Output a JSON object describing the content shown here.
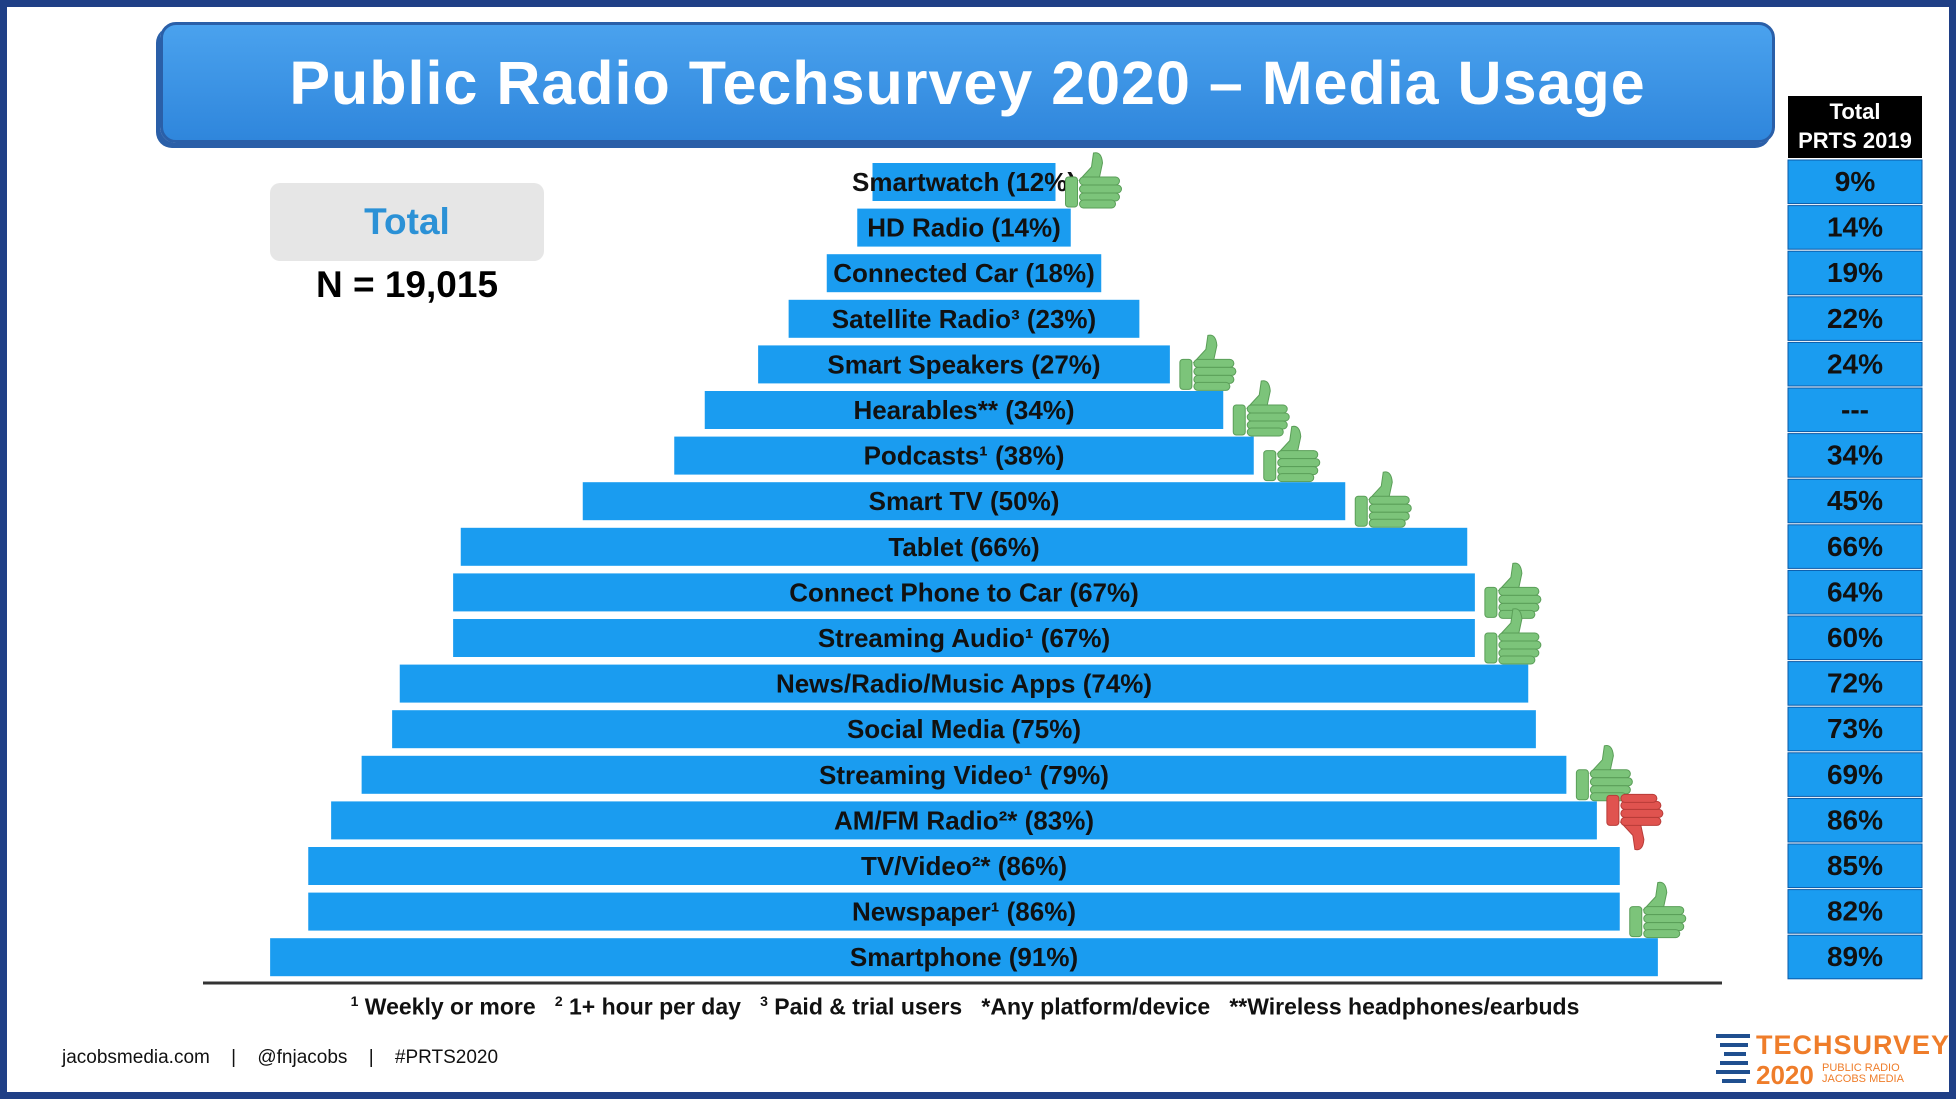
{
  "title": "Public Radio Techsurvey 2020 – Media Usage",
  "total_label": "Total",
  "sample_size": "N = 19,015",
  "prior_column": {
    "header_line1": "Total",
    "header_line2": "PRTS 2019"
  },
  "colors": {
    "bar": "#1a9cf0",
    "prior_cell": "#1a9cf0",
    "header_cell": "#000000",
    "thumbs_up": "#7cc47a",
    "thumbs_down": "#e0534f"
  },
  "chart_data": {
    "type": "bar",
    "orientation": "horizontal-centered",
    "series": [
      {
        "name": "Total",
        "values": [
          12,
          14,
          18,
          23,
          27,
          34,
          38,
          50,
          66,
          67,
          67,
          74,
          75,
          79,
          83,
          86,
          86,
          91
        ]
      }
    ],
    "bar_labels": [
      "Smartwatch (12%)",
      "HD Radio (14%)",
      "Connected Car (18%)",
      "Satellite Radio³ (23%)",
      "Smart Speakers (27%)",
      "Hearables** (34%)",
      "Podcasts¹ (38%)",
      "Smart TV (50%)",
      "Tablet (66%)",
      "Connect Phone to Car (67%)",
      "Streaming Audio¹ (67%)",
      "News/Radio/Music Apps (74%)",
      "Social Media (75%)",
      "Streaming Video¹ (79%)",
      "AM/FM Radio²* (83%)",
      "TV/Video²* (86%)",
      "Newspaper¹ (86%)",
      "Smartphone (91%)"
    ],
    "trend_icons": [
      "thumbs-up",
      "",
      "",
      "",
      "thumbs-up",
      "thumbs-up",
      "thumbs-up",
      "thumbs-up",
      "",
      "thumbs-up",
      "thumbs-up",
      "",
      "",
      "thumbs-up",
      "thumbs-down",
      "",
      "thumbs-up",
      ""
    ],
    "prior_year_values": [
      "9%",
      "14%",
      "19%",
      "22%",
      "24%",
      "---",
      "34%",
      "45%",
      "66%",
      "64%",
      "60%",
      "72%",
      "73%",
      "69%",
      "86%",
      "85%",
      "82%",
      "89%"
    ],
    "xlim": [
      0,
      100
    ]
  },
  "footnote": {
    "n1": "1",
    "t1": "Weekly or more",
    "n2": "2",
    "t2": "1+ hour per day",
    "n3": "3",
    "t3": "Paid & trial users",
    "t4": "*Any platform/device",
    "t5": "**Wireless headphones/earbuds"
  },
  "credits": {
    "site": "jacobsmedia.com",
    "sep": "|",
    "handle": "@fnjacobs",
    "hashtag": "#PRTS2020"
  },
  "logo": {
    "main": "TECHSURVEY",
    "year": "2020",
    "sub1": "PUBLIC RADIO",
    "sub2": "JACOBS MEDIA"
  }
}
